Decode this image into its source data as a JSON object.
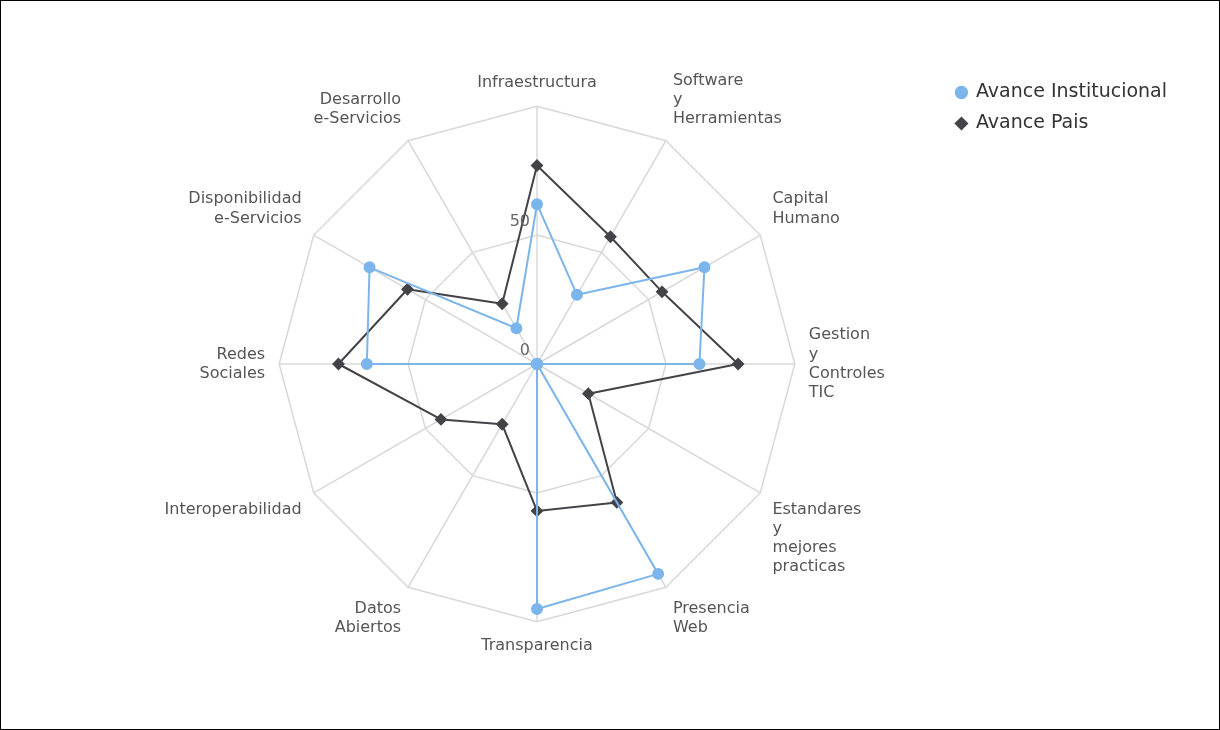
{
  "chart_data": {
    "type": "radar",
    "categories": [
      "Infraestructura",
      "Software y Herramientas",
      "Capital Humano",
      "Gestion y Controles TIC",
      "Estandares y mejores practicas",
      "Presencia Web",
      "Transparencia",
      "Datos Abiertos",
      "Interoperabilidad",
      "Redes Sociales",
      "Disponibilidad e-Servicios",
      "Desarrollo e-Servicios"
    ],
    "series": [
      {
        "name": "Avance Institucional",
        "color": "#7cb5ec",
        "marker": "circle",
        "values": [
          62,
          31,
          75,
          63,
          0,
          94,
          95,
          0,
          0,
          66,
          75,
          16
        ]
      },
      {
        "name": "Avance Pais",
        "color": "#434348",
        "marker": "diamond",
        "values": [
          77,
          57,
          56,
          78,
          23,
          62,
          57,
          27,
          43,
          77,
          58,
          27
        ]
      }
    ],
    "ylim": [
      0,
      100
    ],
    "yticks": [
      0,
      50
    ],
    "grid": true,
    "legend": "right"
  }
}
